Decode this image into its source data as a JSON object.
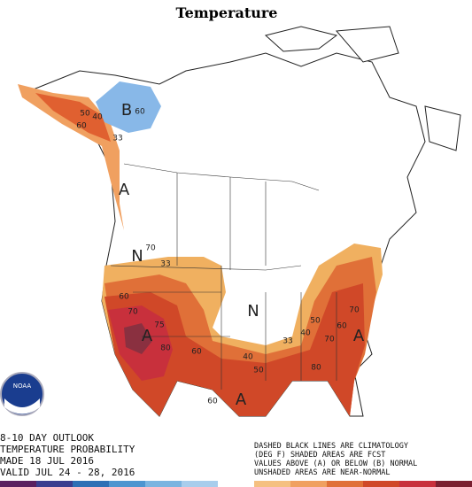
{
  "title": "Temperature",
  "map_labels": [
    "B",
    "A",
    "A",
    "A",
    "A",
    "N",
    "N"
  ],
  "contour_labels": [
    "50",
    "40",
    "60",
    "33",
    "60",
    "70",
    "33",
    "60",
    "70",
    "75",
    "80",
    "60",
    "40",
    "50",
    "60",
    "33",
    "40",
    "50",
    "60",
    "70",
    "80",
    "70"
  ],
  "outlook_text": [
    "8-10 DAY OUTLOOK",
    "TEMPERATURE PROBABILITY",
    "MADE  18 JUL 2016",
    "VALID  JUL 24 - 28, 2016"
  ],
  "legend_text": [
    "DASHED BLACK LINES ARE CLIMATOLOGY",
    "(DEG F) SHADED AREAS ARE FCST",
    "VALUES ABOVE (A) OR BELOW (B) NORMAL",
    "UNSHADED AREAS ARE NEAR-NORMAL"
  ],
  "logo_text": "NOAA"
}
